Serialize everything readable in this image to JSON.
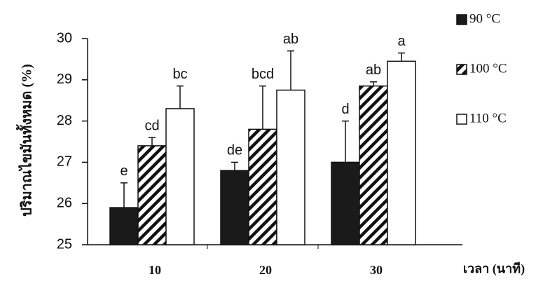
{
  "chart_data": {
    "type": "bar",
    "y_label": "ปริมาณไขมันทั้งหมด (%)",
    "x_label": "เวลา (นาที)",
    "categories": [
      "10",
      "20",
      "30"
    ],
    "series": [
      {
        "name": "90 °C",
        "color": "#1a1a1a",
        "hatch": false,
        "values": [
          25.9,
          26.8,
          27.0
        ],
        "errors": [
          0.6,
          0.2,
          1.0
        ],
        "labels": [
          "e",
          "de",
          "d"
        ]
      },
      {
        "name": "100 °C",
        "color": "#ffffff",
        "hatch": true,
        "values": [
          27.4,
          27.8,
          28.85
        ],
        "errors": [
          0.2,
          1.05,
          0.1
        ],
        "labels": [
          "cd",
          "bcd",
          "ab"
        ]
      },
      {
        "name": "110 °C",
        "color": "#ffffff",
        "hatch": false,
        "values": [
          28.3,
          28.75,
          29.45
        ],
        "errors": [
          0.55,
          0.95,
          0.2
        ],
        "labels": [
          "bc",
          "ab",
          "a"
        ]
      }
    ],
    "ylim": [
      25,
      30
    ],
    "yticks": [
      25,
      26,
      27,
      28,
      29,
      30
    ]
  }
}
